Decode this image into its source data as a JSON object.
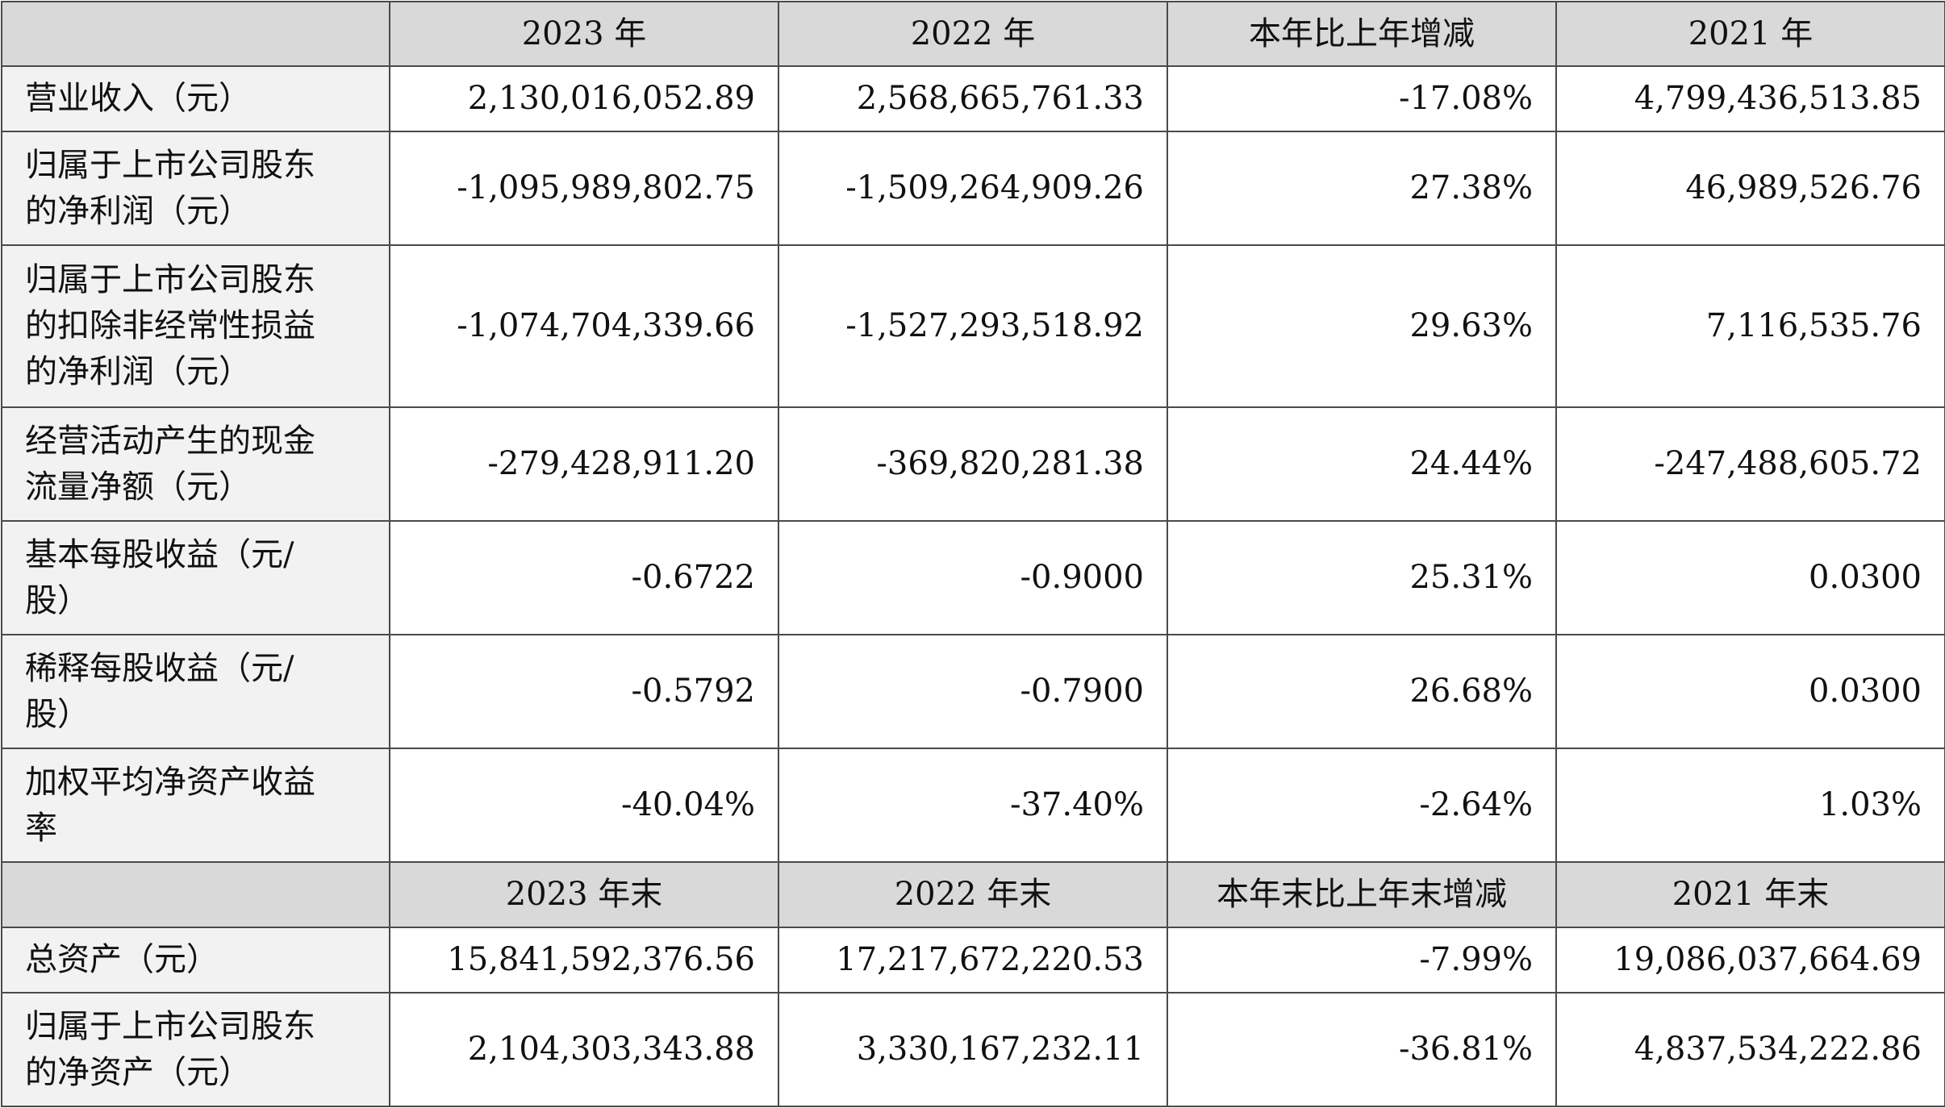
{
  "header_top": [
    "",
    "2023 年",
    "2022 年",
    "本年比上年增减",
    "2021 年"
  ],
  "rows_top": [
    {
      "label": "营业收入（元）",
      "v2023": "2,130,016,052.89",
      "v2022": "2,568,665,761.33",
      "change": "-17.08%",
      "v2021": "4,799,436,513.85"
    },
    {
      "label": "归属于上市公司股东\n的净利润（元）",
      "v2023": "-1,095,989,802.75",
      "v2022": "-1,509,264,909.26",
      "change": "27.38%",
      "v2021": "46,989,526.76"
    },
    {
      "label": "归属于上市公司股东\n的扣除非经常性损益\n的净利润（元）",
      "v2023": "-1,074,704,339.66",
      "v2022": "-1,527,293,518.92",
      "change": "29.63%",
      "v2021": "7,116,535.76"
    },
    {
      "label": "经营活动产生的现金\n流量净额（元）",
      "v2023": "-279,428,911.20",
      "v2022": "-369,820,281.38",
      "change": "24.44%",
      "v2021": "-247,488,605.72"
    },
    {
      "label": "基本每股收益（元/\n股）",
      "v2023": "-0.6722",
      "v2022": "-0.9000",
      "change": "25.31%",
      "v2021": "0.0300"
    },
    {
      "label": "稀释每股收益（元/\n股）",
      "v2023": "-0.5792",
      "v2022": "-0.7900",
      "change": "26.68%",
      "v2021": "0.0300"
    },
    {
      "label": "加权平均净资产收益\n率",
      "v2023": "-40.04%",
      "v2022": "-37.40%",
      "change": "-2.64%",
      "v2021": "1.03%"
    }
  ],
  "header_bottom": [
    "",
    "2023 年末",
    "2022 年末",
    "本年末比上年末增减",
    "2021 年末"
  ],
  "rows_bottom": [
    {
      "label": "总资产（元）",
      "v2023": "15,841,592,376.56",
      "v2022": "17,217,672,220.53",
      "change": "-7.99%",
      "v2021": "19,086,037,664.69"
    },
    {
      "label": "归属于上市公司股东\n的净资产（元）",
      "v2023": "2,104,303,343.88",
      "v2022": "3,330,167,232.11",
      "change": "-36.81%",
      "v2021": "4,837,534,222.86"
    }
  ],
  "colors": {
    "header_bg": "#d9d9d9",
    "label_bg": "#f2f2f2",
    "border": "#4a4a4a"
  }
}
